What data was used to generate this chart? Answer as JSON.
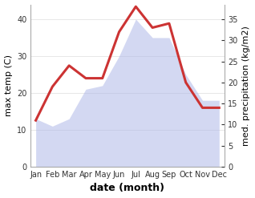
{
  "months": [
    "Jan",
    "Feb",
    "Mar",
    "Apr",
    "May",
    "Jun",
    "Jul",
    "Aug",
    "Sep",
    "Oct",
    "Nov",
    "Dec"
  ],
  "temp": [
    13,
    11,
    13,
    21,
    22,
    30,
    40,
    35,
    35,
    25,
    18,
    18
  ],
  "precip": [
    11,
    19,
    24,
    21,
    21,
    32,
    38,
    33,
    34,
    20,
    14,
    14
  ],
  "temp_color": "#b0b8e8",
  "precip_color": "#cc3333",
  "ylabel_left": "max temp (C)",
  "ylabel_right": "med. precipitation (kg/m2)",
  "xlabel": "date (month)",
  "ylim_left": [
    0,
    44
  ],
  "ylim_right": [
    0,
    38.5
  ],
  "yticks_left": [
    0,
    10,
    20,
    30,
    40
  ],
  "yticks_right": [
    0,
    5,
    10,
    15,
    20,
    25,
    30,
    35
  ],
  "bg_color": "#ffffff",
  "fill_alpha": 0.55,
  "precip_linewidth": 2.2,
  "xlabel_fontsize": 9,
  "ylabel_fontsize": 8
}
